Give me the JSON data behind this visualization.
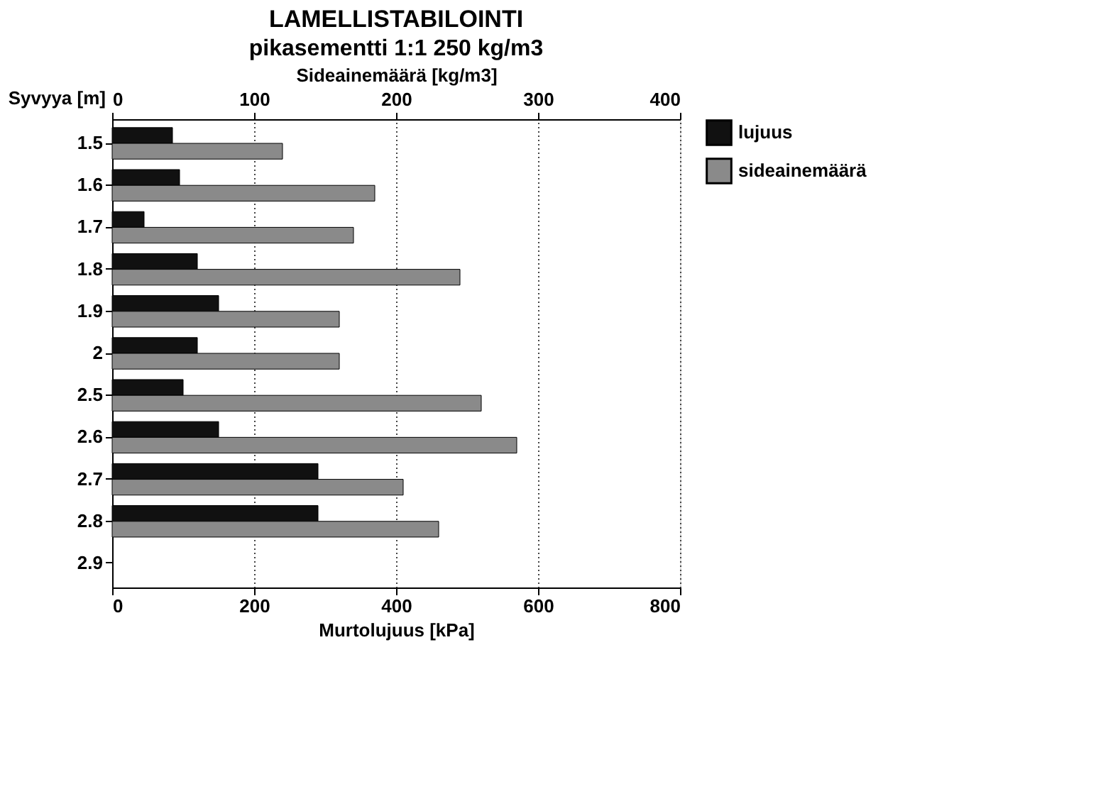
{
  "chart_data": {
    "type": "bar",
    "orientation": "horizontal",
    "title": "LAMELLISTABILOINTI",
    "subtitle": "pikasementti 1:1 250 kg/m3",
    "categories": [
      "1.5",
      "1.6",
      "1.7",
      "1.8",
      "1.9",
      "2",
      "2.5",
      "2.6",
      "2.7",
      "2.8",
      "2.9"
    ],
    "ylabel": "Syvyya [m]",
    "xlabel": "Murtolujuus [kPa]",
    "x2label": "Sideainemäärä [kg/m3]",
    "xlim": [
      0,
      800
    ],
    "xticks": [
      0,
      200,
      400,
      600,
      800
    ],
    "x2lim": [
      0,
      400
    ],
    "x2ticks": [
      0,
      100,
      200,
      300,
      400
    ],
    "series": [
      {
        "name": "lujuus",
        "color": "#111111",
        "values": [
          85,
          95,
          45,
          120,
          150,
          120,
          100,
          150,
          290,
          290,
          null
        ]
      },
      {
        "name": "sideainemäärä",
        "color": "#8a8a8a",
        "axis": "x2",
        "values": [
          120,
          185,
          170,
          245,
          160,
          160,
          260,
          285,
          205,
          230,
          null
        ]
      }
    ],
    "grid": "x",
    "legend": "right"
  }
}
